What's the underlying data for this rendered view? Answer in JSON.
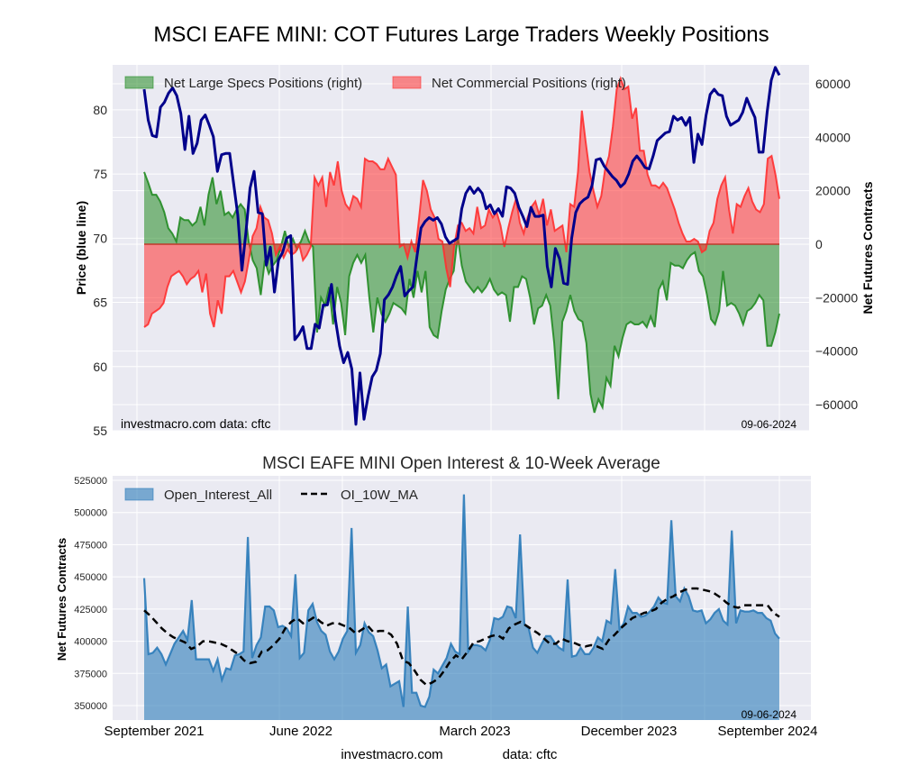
{
  "chart_data": [
    {
      "type": "line",
      "title": "MSCI EAFE MINI: COT Futures Large Traders Weekly Positions",
      "xlabel": "",
      "ylabel": "Price (blue line)",
      "y2label": "Net Futures Contracts",
      "ylim": [
        55,
        83.5
      ],
      "y2lim": [
        -62000,
        67000
      ],
      "yticks": [
        55,
        60,
        65,
        70,
        75,
        80
      ],
      "y2ticks": [
        -60000,
        -40000,
        -20000,
        0,
        20000,
        40000,
        60000
      ],
      "y2tick_labels": [
        "−60000",
        "−40000",
        "−20000",
        "0",
        "20000",
        "40000",
        "60000"
      ],
      "grid": true,
      "legend_position": "top-left",
      "legend": [
        "Net Large Specs Positions (right)",
        "Net Commercial Positions (right)"
      ],
      "annotations": {
        "source": "investmacro.com   data: cftc",
        "date": "09-06-2024"
      },
      "x_range": [
        "2021-08",
        "2024-09"
      ],
      "series": [
        {
          "name": "Price",
          "axis": "left",
          "color": "#00008b",
          "values": [
            81.6,
            79.2,
            78.0,
            77.9,
            80.2,
            80.6,
            81.3,
            81.7,
            81.1,
            79.7,
            76.9,
            79.5,
            76.6,
            77.4,
            79.2,
            79.6,
            78.8,
            77.9,
            75.2,
            76.5,
            76.6,
            76.6,
            74.2,
            71.8,
            67.5,
            70.5,
            73.9,
            75.2,
            72.0,
            71.9,
            67.9,
            69.3,
            65.8,
            68.3,
            68.9,
            70.0,
            70.2,
            62.1,
            62.5,
            63.1,
            61.4,
            61.4,
            63.3,
            63.0,
            64.8,
            64.8,
            66.4,
            63.6,
            61.6,
            60.3,
            61.1,
            59.8,
            55.5,
            59.5,
            55.9,
            57.7,
            59.2,
            59.7,
            61.0,
            65.2,
            65.6,
            66.2,
            67.1,
            67.8,
            65.5,
            65.9,
            66.2,
            68.6,
            70.8,
            71.3,
            71.6,
            71.4,
            71.6,
            71.1,
            70.1,
            69.6,
            69.8,
            70.0,
            72.3,
            73.5,
            74.0,
            73.5,
            73.9,
            73.5,
            72.3,
            72.6,
            71.9,
            72.3,
            71.7,
            74.0,
            73.9,
            73.5,
            72.4,
            71.7,
            70.9,
            72.4,
            71.7,
            71.7,
            71.8,
            67.8,
            66.2,
            69.2,
            68.4,
            66.5,
            66.4,
            70.0,
            72.0,
            72.7,
            73.0,
            73.2,
            74.1,
            76.1,
            76.2,
            75.6,
            75.2,
            74.8,
            74.5,
            74.0,
            74.3,
            75.0,
            76.0,
            76.4,
            76.0,
            75.5,
            75.4,
            76.4,
            77.6,
            77.9,
            78.2,
            78.3,
            79.5,
            79.2,
            79.4,
            78.8,
            79.4,
            75.9,
            78.1,
            77.3,
            79.6,
            81.2,
            81.6,
            81.2,
            81.1,
            79.5,
            78.8,
            79.0,
            79.2,
            79.8,
            80.9,
            80.1,
            79.4,
            76.7,
            76.7,
            79.8,
            82.3,
            83.3,
            82.7
          ]
        },
        {
          "name": "Net Large Specs Positions (right)",
          "axis": "right",
          "color": "#228b22",
          "values": [
            27000,
            23000,
            18500,
            18500,
            16000,
            12000,
            6000,
            4000,
            1000,
            10000,
            9000,
            9000,
            7000,
            8500,
            14000,
            7000,
            18500,
            25000,
            15000,
            20000,
            11000,
            12000,
            10000,
            13000,
            15000,
            13000,
            1000,
            -6000,
            -9000,
            -19000,
            -6000,
            -11000,
            -8000,
            -6000,
            -1000,
            5000,
            -1000,
            2000,
            -2000,
            1000,
            5000,
            1000,
            -1000,
            -33000,
            -20000,
            -23000,
            -16000,
            -30000,
            -16000,
            -22000,
            -34000,
            -12000,
            -7000,
            -4000,
            -7000,
            -4000,
            -20000,
            -33000,
            -20000,
            -26000,
            -29000,
            -26000,
            -22000,
            -23000,
            -24000,
            -26000,
            -13000,
            -20000,
            -10000,
            -18000,
            -10000,
            -31000,
            -34000,
            -35000,
            -25000,
            -17000,
            -13000,
            -10000,
            3000,
            -8000,
            -14000,
            -16000,
            -18000,
            -16000,
            -18000,
            -16000,
            -13000,
            -17000,
            -19000,
            -18000,
            -19000,
            -29000,
            -16000,
            -16000,
            -12000,
            -13000,
            -20000,
            -30000,
            -24000,
            -23000,
            -19000,
            -23000,
            -37000,
            -58000,
            -29000,
            -25000,
            -19000,
            -25000,
            -28000,
            -29000,
            -37000,
            -56000,
            -63000,
            -58000,
            -61000,
            -50000,
            -53000,
            -38000,
            -42000,
            -35000,
            -30000,
            -29000,
            -30000,
            -30000,
            -29000,
            -31000,
            -27000,
            -31000,
            -17000,
            -14000,
            -21000,
            -7000,
            -8000,
            -8000,
            -9000,
            -6000,
            -4000,
            -3000,
            -10000,
            -12000,
            -19000,
            -28000,
            -30000,
            -25000,
            -10000,
            -23000,
            -22000,
            -23000,
            -26000,
            -30000,
            -25000,
            -24000,
            -22000,
            -19000,
            -21000,
            -38000,
            -38000,
            -33000,
            -26000
          ]
        },
        {
          "name": "Net Commercial Positions (right)",
          "axis": "right",
          "color": "#ff3030",
          "values": [
            -31000,
            -30000,
            -26000,
            -25000,
            -24000,
            -22000,
            -16000,
            -12000,
            -11000,
            -10000,
            -12000,
            -15000,
            -13000,
            -12000,
            -10000,
            -18000,
            -11000,
            -26000,
            -31000,
            -21000,
            -26000,
            -12000,
            -12000,
            -10000,
            -14000,
            -18000,
            -14000,
            -6000,
            3000,
            6000,
            14000,
            10000,
            9000,
            4000,
            -4000,
            -1000,
            -5000,
            -2000,
            -4000,
            -3000,
            0,
            -6000,
            -4000,
            -1000,
            25000,
            22000,
            25000,
            14000,
            27000,
            22000,
            31000,
            20000,
            15000,
            13000,
            18000,
            17000,
            14000,
            32000,
            31000,
            31000,
            30000,
            28000,
            28000,
            32000,
            29000,
            26000,
            -1000,
            0,
            -5000,
            1000,
            -3000,
            10000,
            24000,
            20000,
            13000,
            10000,
            2000,
            1000,
            -9000,
            -16000,
            -1000,
            7000,
            8000,
            5000,
            6000,
            4000,
            14000,
            6000,
            7000,
            13000,
            10000,
            12000,
            7000,
            -1000,
            6000,
            12000,
            17000,
            8000,
            4000,
            10000,
            14000,
            16000,
            11000,
            17000,
            7000,
            13000,
            5000,
            6000,
            7000,
            -3000,
            15000,
            14000,
            27000,
            50000,
            38000,
            27000,
            20000,
            14000,
            18000,
            28000,
            33000,
            44000,
            58000,
            62000,
            58000,
            59000,
            47000,
            51000,
            35000,
            35000,
            26000,
            22000,
            22000,
            21000,
            23000,
            21000,
            17000,
            13000,
            8000,
            4000,
            1000,
            1000,
            2000,
            1000,
            -3000,
            -2000,
            5000,
            8000,
            17000,
            22000,
            25000,
            13000,
            4000,
            15000,
            14000,
            18000,
            21000,
            16000,
            13000,
            12000,
            15000,
            32000,
            33000,
            26000,
            17000
          ]
        }
      ]
    },
    {
      "type": "area",
      "title": "MSCI EAFE MINI Open Interest & 10-Week Average",
      "xlabel": "",
      "ylabel": "Net Futures Contracts",
      "ylim": [
        340000,
        527000
      ],
      "yticks": [
        350000,
        375000,
        400000,
        425000,
        450000,
        475000,
        500000,
        525000
      ],
      "xtick_labels": [
        "September 2021",
        "June 2022",
        "March 2023",
        "December 2023",
        "September 2024"
      ],
      "grid": true,
      "legend_position": "top-left",
      "legend": [
        "Open_Interest_All",
        "OI_10W_MA"
      ],
      "annotations": {
        "date": "09-06-2024"
      },
      "series": [
        {
          "name": "Open_Interest_All",
          "color": "#2b7bb9",
          "values": [
            449000,
            390000,
            391000,
            395000,
            390000,
            382000,
            390000,
            398000,
            403000,
            408000,
            401000,
            432000,
            386000,
            386000,
            386000,
            386000,
            377000,
            386000,
            370000,
            379000,
            378000,
            389000,
            390000,
            392000,
            481000,
            387000,
            397000,
            403000,
            427000,
            427000,
            424000,
            411000,
            412000,
            410000,
            404000,
            452000,
            387000,
            391000,
            424000,
            429000,
            415000,
            408000,
            405000,
            392000,
            386000,
            392000,
            402000,
            408000,
            488000,
            391000,
            397000,
            414000,
            407000,
            404000,
            393000,
            379000,
            382000,
            365000,
            367000,
            369000,
            349000,
            427000,
            360000,
            360000,
            350000,
            349000,
            357000,
            378000,
            375000,
            381000,
            387000,
            398000,
            392000,
            390000,
            514000,
            392000,
            397000,
            397000,
            396000,
            393000,
            401000,
            418000,
            417000,
            419000,
            427000,
            426000,
            418000,
            483000,
            413000,
            410000,
            395000,
            391000,
            398000,
            404000,
            404000,
            399000,
            395000,
            393000,
            448000,
            388000,
            389000,
            395000,
            390000,
            390000,
            395000,
            403000,
            400000,
            416000,
            414000,
            456000,
            409000,
            414000,
            427000,
            422000,
            422000,
            419000,
            420000,
            423000,
            427000,
            434000,
            430000,
            429000,
            494000,
            435000,
            431000,
            441000,
            435000,
            424000,
            423000,
            424000,
            414000,
            417000,
            422000,
            425000,
            416000,
            413000,
            486000,
            414000,
            424000,
            423000,
            423000,
            424000,
            422000,
            422000,
            418000,
            416000,
            406000,
            402000
          ]
        },
        {
          "name": "OI_10W_MA",
          "color": "#000000",
          "style": "dashed",
          "values": [
            424000,
            420000,
            415000,
            410000,
            406000,
            403000,
            401000,
            399000,
            394000,
            396000,
            400000,
            400000,
            399000,
            398000,
            396000,
            393000,
            390000,
            385000,
            383000,
            384000,
            392000,
            393000,
            397000,
            402000,
            410000,
            415000,
            418000,
            414000,
            416000,
            419000,
            415000,
            412000,
            414000,
            414000,
            412000,
            410000,
            406000,
            409000,
            412000,
            407000,
            408000,
            408000,
            405000,
            398000,
            385000,
            383000,
            377000,
            370000,
            366000,
            368000,
            371000,
            377000,
            384000,
            389000,
            386000,
            392000,
            399000,
            400000,
            402000,
            404000,
            405000,
            402000,
            410000,
            413000,
            415000,
            412000,
            409000,
            406000,
            402000,
            398000,
            398000,
            402000,
            400000,
            399000,
            397000,
            396000,
            397000,
            396000,
            394000,
            401000,
            405000,
            410000,
            414000,
            418000,
            420000,
            422000,
            423000,
            425000,
            430000,
            433000,
            435000,
            438000,
            440000,
            441000,
            441000,
            440000,
            439000,
            437000,
            434000,
            430000,
            427000,
            426000,
            428000,
            428000,
            428000,
            428000,
            428000,
            422000,
            419000
          ]
        }
      ]
    }
  ],
  "footer": {
    "source": "investmacro.com",
    "data": "data: cftc"
  }
}
